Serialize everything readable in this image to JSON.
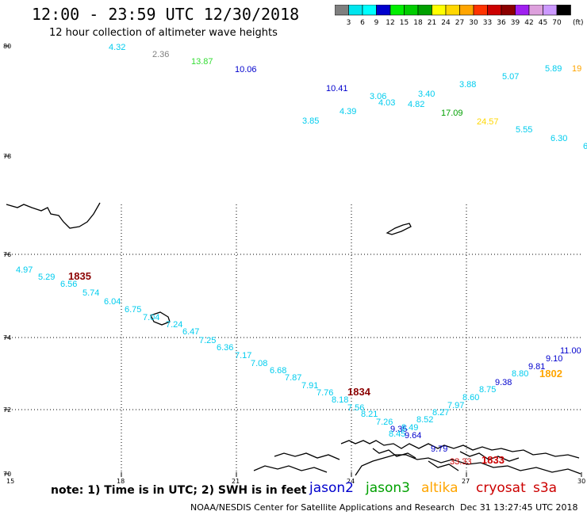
{
  "header": {
    "title": "12:00 - 23:59 UTC 12/30/2018",
    "subtitle": "12 hour collection of altimeter wave heights"
  },
  "legend": {
    "ticks": [
      "3",
      "6",
      "9",
      "12",
      "15",
      "18",
      "21",
      "24",
      "27",
      "30",
      "33",
      "36",
      "39",
      "42",
      "45",
      "70"
    ],
    "unit": "(ft)",
    "colors": [
      "#7f7f7f",
      "#00e5ee",
      "#00ffff",
      "#0000cd",
      "#00ee00",
      "#00cd00",
      "#00a000",
      "#ffff00",
      "#ffd700",
      "#ffa500",
      "#ff3300",
      "#cc0000",
      "#8b0000",
      "#a020f0",
      "#dda0dd",
      "#cc99ff",
      "#000000"
    ]
  },
  "axes": {
    "x_ticks": [
      "15",
      "18",
      "21",
      "24",
      "27",
      "30"
    ],
    "y_ticks": [
      "80",
      "78",
      "76",
      "74",
      "72",
      "70"
    ]
  },
  "observations": [
    {
      "v": "4.32",
      "c": "#00ccee"
    },
    {
      "v": "2.36",
      "c": "#7f7f7f"
    },
    {
      "v": "13.87",
      "c": "#33dd33"
    },
    {
      "v": "10.06",
      "c": "#0000cd"
    },
    {
      "v": "10.41",
      "c": "#0000cd"
    },
    {
      "v": "3.06",
      "c": "#00ccee"
    },
    {
      "v": "4.03",
      "c": "#00ccee"
    },
    {
      "v": "3.40",
      "c": "#00ccee"
    },
    {
      "v": "4.82",
      "c": "#00ccee"
    },
    {
      "v": "3.88",
      "c": "#00ccee"
    },
    {
      "v": "5.07",
      "c": "#00ccee"
    },
    {
      "v": "5.89",
      "c": "#00ccee"
    },
    {
      "v": "19",
      "c": "#ffa500"
    },
    {
      "v": "3.85",
      "c": "#00ccee"
    },
    {
      "v": "4.39",
      "c": "#00ccee"
    },
    {
      "v": "17.09",
      "c": "#00a000"
    },
    {
      "v": "24.57",
      "c": "#ffd700"
    },
    {
      "v": "5.55",
      "c": "#00ccee"
    },
    {
      "v": "6.30",
      "c": "#00ccee"
    },
    {
      "v": "6",
      "c": "#00ccee"
    },
    {
      "v": "4.97",
      "c": "#00ccee"
    },
    {
      "v": "5.29",
      "c": "#00ccee"
    },
    {
      "v": "1835",
      "c": "#8b0000"
    },
    {
      "v": "6.56",
      "c": "#00ccee"
    },
    {
      "v": "5.74",
      "c": "#00ccee"
    },
    {
      "v": "6.04",
      "c": "#00ccee"
    },
    {
      "v": "6.75",
      "c": "#00ccee"
    },
    {
      "v": "7.04",
      "c": "#00ccee"
    },
    {
      "v": "7.24",
      "c": "#00ccee"
    },
    {
      "v": "6.47",
      "c": "#00ccee"
    },
    {
      "v": "7.25",
      "c": "#00ccee"
    },
    {
      "v": "6.36",
      "c": "#00ccee"
    },
    {
      "v": "7.17",
      "c": "#00ccee"
    },
    {
      "v": "7.08",
      "c": "#00ccee"
    },
    {
      "v": "6.68",
      "c": "#00ccee"
    },
    {
      "v": "7.87",
      "c": "#00ccee"
    },
    {
      "v": "7.91",
      "c": "#00ccee"
    },
    {
      "v": "7.76",
      "c": "#00ccee"
    },
    {
      "v": "1834",
      "c": "#8b0000"
    },
    {
      "v": "8.18",
      "c": "#00ccee"
    },
    {
      "v": "7.56",
      "c": "#00ccee"
    },
    {
      "v": "8.21",
      "c": "#00ccee"
    },
    {
      "v": "7.26",
      "c": "#00ccee"
    },
    {
      "v": "9.35",
      "c": "#0000cd"
    },
    {
      "v": "8.45",
      "c": "#00ccee"
    },
    {
      "v": "8.49",
      "c": "#00ccee"
    },
    {
      "v": "9.64",
      "c": "#0000cd"
    },
    {
      "v": "8.52",
      "c": "#00ccee"
    },
    {
      "v": "8.27",
      "c": "#00ccee"
    },
    {
      "v": "7.97",
      "c": "#00ccee"
    },
    {
      "v": "8.60",
      "c": "#00ccee"
    },
    {
      "v": "8.75",
      "c": "#00ccee"
    },
    {
      "v": "9.38",
      "c": "#0000cd"
    },
    {
      "v": "8.80",
      "c": "#00ccee"
    },
    {
      "v": "9.81",
      "c": "#0000cd"
    },
    {
      "v": "9.10",
      "c": "#0000cd"
    },
    {
      "v": "11.00",
      "c": "#0000cd"
    },
    {
      "v": "1802",
      "c": "#ffa500"
    },
    {
      "v": "9.79",
      "c": "#0000cd"
    },
    {
      "v": "33.33",
      "c": "#cc0000"
    },
    {
      "v": "1833",
      "c": "#cc0000"
    }
  ],
  "footer": {
    "note": "note: 1) Time is in UTC; 2) SWH is in feet",
    "satellites": [
      {
        "name": "jason2",
        "color": "#0000cd"
      },
      {
        "name": "jason3",
        "color": "#00a000"
      },
      {
        "name": "altika",
        "color": "#ffa500"
      },
      {
        "name": "cryosat",
        "color": "#cc0000"
      },
      {
        "name": "s3a",
        "color": "#cc0000"
      }
    ],
    "credit": "NOAA/NESDIS Center for Satellite Applications and Research",
    "timestamp": "Dec 31 13:27:45 UTC 2018"
  }
}
